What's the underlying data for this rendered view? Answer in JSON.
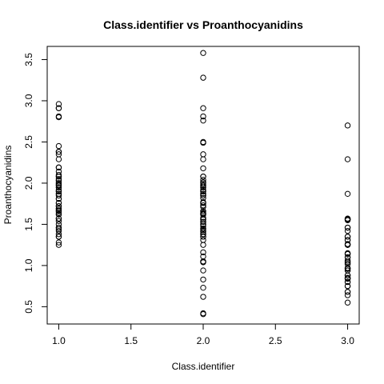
{
  "chart_data": {
    "type": "scatter",
    "title": "Class.identifier vs Proanthocyanidins",
    "xlabel": "Class.identifier",
    "ylabel": "Proanthocyanidins",
    "xlim": [
      0.92,
      3.08
    ],
    "ylim": [
      0.29,
      3.66
    ],
    "xticks": [
      "1.0",
      "1.5",
      "2.0",
      "2.5",
      "3.0"
    ],
    "yticks": [
      "0.5",
      "1.0",
      "1.5",
      "2.0",
      "2.5",
      "3.0",
      "3.5"
    ],
    "grid": false,
    "marker": "open-circle",
    "series": [
      {
        "x": [
          1,
          1,
          1,
          1,
          1,
          1,
          1,
          1,
          1,
          1,
          1,
          1,
          1,
          1,
          1,
          1,
          1,
          1,
          1,
          1,
          1,
          1,
          1,
          1,
          1,
          1,
          1,
          1,
          1,
          1,
          1,
          1,
          1,
          1,
          1,
          1,
          1,
          1,
          1,
          1,
          1,
          1,
          1,
          1,
          1,
          1,
          1,
          1,
          1,
          1,
          1,
          1,
          1,
          1,
          1,
          1,
          1,
          1,
          1
        ],
        "y": [
          2.96,
          2.91,
          2.81,
          2.8,
          2.45,
          2.38,
          2.35,
          2.29,
          2.19,
          2.14,
          2.1,
          2.08,
          2.05,
          2.03,
          2.0,
          1.98,
          1.97,
          1.95,
          1.92,
          1.9,
          1.87,
          1.85,
          1.81,
          1.76,
          1.72,
          1.69,
          1.67,
          1.66,
          1.64,
          1.62,
          1.57,
          1.54,
          1.5,
          1.46,
          1.44,
          1.42,
          1.38,
          1.35,
          1.35,
          1.28,
          1.25,
          1.98,
          1.87,
          1.76,
          1.66,
          2.19,
          2.03,
          1.9,
          1.69,
          1.46,
          2.38,
          2.08,
          1.95,
          1.81,
          1.57,
          2.0,
          1.72,
          1.62,
          2.91
        ]
      },
      {
        "x": [
          2,
          2,
          2,
          2,
          2,
          2,
          2,
          2,
          2,
          2,
          2,
          2,
          2,
          2,
          2,
          2,
          2,
          2,
          2,
          2,
          2,
          2,
          2,
          2,
          2,
          2,
          2,
          2,
          2,
          2,
          2,
          2,
          2,
          2,
          2,
          2,
          2,
          2,
          2,
          2,
          2,
          2,
          2,
          2,
          2,
          2,
          2,
          2,
          2,
          2,
          2,
          2,
          2,
          2,
          2,
          2,
          2,
          2,
          2,
          2,
          2,
          2,
          2,
          2,
          2,
          2,
          2,
          2,
          2,
          2,
          2
        ],
        "y": [
          3.58,
          3.28,
          2.91,
          2.81,
          2.76,
          2.5,
          2.49,
          2.35,
          2.29,
          2.18,
          2.08,
          2.04,
          2.01,
          1.99,
          1.97,
          1.95,
          1.92,
          1.9,
          1.87,
          1.85,
          1.82,
          1.77,
          1.76,
          1.73,
          1.71,
          1.66,
          1.64,
          1.63,
          1.62,
          1.58,
          1.56,
          1.53,
          1.5,
          1.48,
          1.45,
          1.43,
          1.41,
          1.38,
          1.35,
          1.31,
          1.25,
          1.16,
          1.11,
          1.05,
          1.04,
          0.94,
          0.83,
          0.73,
          0.62,
          0.42,
          0.41,
          2.08,
          1.95,
          1.85,
          1.63,
          1.45,
          1.35,
          1.04,
          1.87,
          1.56,
          1.41,
          1.97,
          1.76,
          1.62,
          1.5,
          1.38,
          2.01,
          1.9,
          1.66,
          1.53,
          1.43
        ]
      },
      {
        "x": [
          3,
          3,
          3,
          3,
          3,
          3,
          3,
          3,
          3,
          3,
          3,
          3,
          3,
          3,
          3,
          3,
          3,
          3,
          3,
          3,
          3,
          3,
          3,
          3,
          3,
          3,
          3,
          3,
          3,
          3,
          3,
          3,
          3,
          3,
          3,
          3,
          3,
          3,
          3,
          3,
          3,
          3,
          3,
          3,
          3,
          3,
          3,
          3
        ],
        "y": [
          2.7,
          2.29,
          1.87,
          1.57,
          1.56,
          1.55,
          1.46,
          1.42,
          1.35,
          1.31,
          1.26,
          1.25,
          1.15,
          1.14,
          1.1,
          1.06,
          1.04,
          1.02,
          0.97,
          0.96,
          0.94,
          0.88,
          0.85,
          0.84,
          0.8,
          0.75,
          0.68,
          0.64,
          0.55,
          1.56,
          1.25,
          1.14,
          1.04,
          0.94,
          0.84,
          0.68,
          1.35,
          1.1,
          0.96,
          0.8,
          1.46,
          1.26,
          1.02,
          0.88,
          0.75,
          1.31,
          0.97,
          0.85
        ]
      }
    ]
  }
}
